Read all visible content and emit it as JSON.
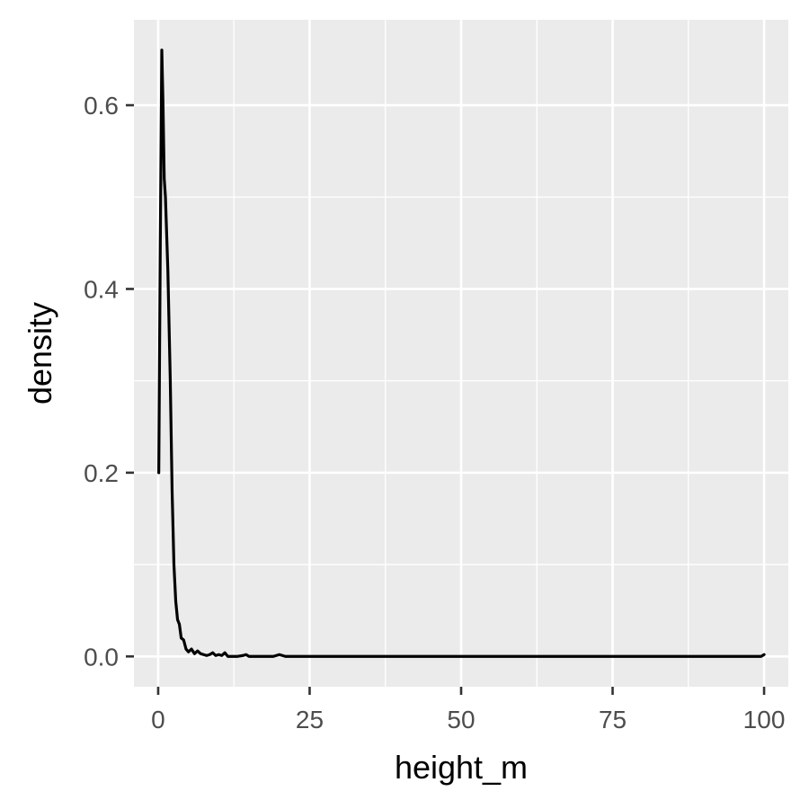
{
  "chart_data": {
    "type": "line",
    "xlabel": "height_m",
    "ylabel": "density",
    "xlim": [
      -4,
      104
    ],
    "ylim": [
      -0.033,
      0.693
    ],
    "x_ticks": [
      0,
      25,
      50,
      75,
      100
    ],
    "x_tick_labels": [
      "0",
      "25",
      "50",
      "75",
      "100"
    ],
    "y_ticks": [
      0.0,
      0.2,
      0.4,
      0.6
    ],
    "y_tick_labels": [
      "0.0",
      "0.2",
      "0.4",
      "0.6"
    ],
    "grid": true,
    "colors": {
      "panel": "#EBEBEB",
      "grid": "#FFFFFF",
      "line": "#000000",
      "tick_text": "#4D4D4D"
    },
    "series": [
      {
        "values": [
          {
            "x": 0.1,
            "y": 0.2
          },
          {
            "x": 0.35,
            "y": 0.45
          },
          {
            "x": 0.6,
            "y": 0.66
          },
          {
            "x": 0.8,
            "y": 0.6
          },
          {
            "x": 1.0,
            "y": 0.52
          },
          {
            "x": 1.2,
            "y": 0.5
          },
          {
            "x": 1.6,
            "y": 0.42
          },
          {
            "x": 2.0,
            "y": 0.3
          },
          {
            "x": 2.3,
            "y": 0.18
          },
          {
            "x": 2.6,
            "y": 0.1
          },
          {
            "x": 2.9,
            "y": 0.06
          },
          {
            "x": 3.2,
            "y": 0.04
          },
          {
            "x": 3.5,
            "y": 0.035
          },
          {
            "x": 3.8,
            "y": 0.02
          },
          {
            "x": 4.2,
            "y": 0.018
          },
          {
            "x": 4.6,
            "y": 0.008
          },
          {
            "x": 5.0,
            "y": 0.005
          },
          {
            "x": 5.5,
            "y": 0.008
          },
          {
            "x": 6.0,
            "y": 0.003
          },
          {
            "x": 6.5,
            "y": 0.006
          },
          {
            "x": 7.0,
            "y": 0.003
          },
          {
            "x": 7.5,
            "y": 0.002
          },
          {
            "x": 8.0,
            "y": 0.001
          },
          {
            "x": 8.5,
            "y": 0.002
          },
          {
            "x": 9.0,
            "y": 0.004
          },
          {
            "x": 9.5,
            "y": 0.001
          },
          {
            "x": 10.0,
            "y": 0.002
          },
          {
            "x": 10.5,
            "y": 0.001
          },
          {
            "x": 11.0,
            "y": 0.004
          },
          {
            "x": 11.5,
            "y": 0.0
          },
          {
            "x": 12.0,
            "y": 0.0
          },
          {
            "x": 13.0,
            "y": 0.0
          },
          {
            "x": 14.0,
            "y": 0.001
          },
          {
            "x": 14.5,
            "y": 0.002
          },
          {
            "x": 15.0,
            "y": 0.0
          },
          {
            "x": 19.0,
            "y": 0.0
          },
          {
            "x": 20.0,
            "y": 0.002
          },
          {
            "x": 21.0,
            "y": 0.0
          },
          {
            "x": 99.5,
            "y": 0.0
          },
          {
            "x": 100.0,
            "y": 0.002
          }
        ]
      }
    ]
  }
}
